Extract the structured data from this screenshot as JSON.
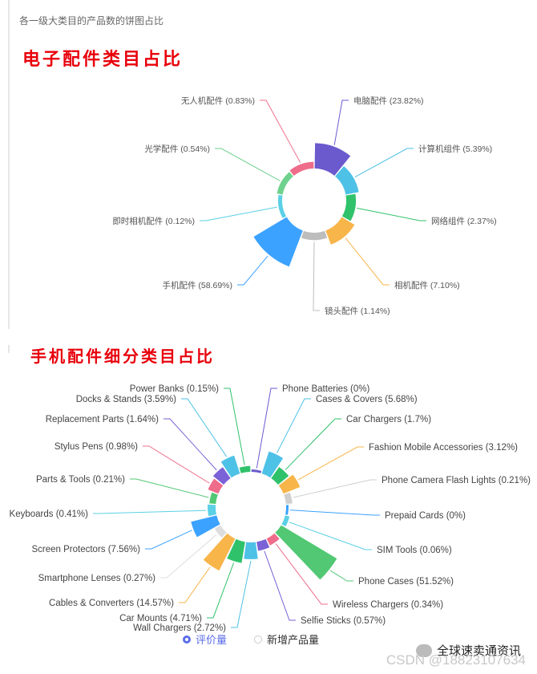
{
  "header": {
    "subtitle": "各一级大类目的产品数的饼图占比"
  },
  "sections": {
    "electronics_title": "电子配件类目占比",
    "phone_title": "手机配件细分类目占比"
  },
  "chart_data": [
    {
      "type": "pie",
      "variant": "rose",
      "slices": [
        {
          "label": "电脑配件 (23.82%)",
          "value": 23.82,
          "color": "#6a5acd"
        },
        {
          "label": "计算机组件 (5.39%)",
          "value": 5.39,
          "color": "#4ec1e6"
        },
        {
          "label": "网络组件 (2.37%)",
          "value": 2.37,
          "color": "#2fc26b"
        },
        {
          "label": "相机配件 (7.10%)",
          "value": 7.1,
          "color": "#f8b54a"
        },
        {
          "label": "镜头配件 (1.14%)",
          "value": 1.14,
          "color": "#bdbdbd"
        },
        {
          "label": "手机配件 (58.69%)",
          "value": 58.69,
          "color": "#3ba2ff"
        },
        {
          "label": "即时相机配件 (0.12%)",
          "value": 0.12,
          "color": "#5bd0e6"
        },
        {
          "label": "光学配件 (0.54%)",
          "value": 0.54,
          "color": "#6fd18e"
        },
        {
          "label": "无人机配件 (0.83%)",
          "value": 0.83,
          "color": "#ef6c8a"
        }
      ]
    },
    {
      "type": "pie",
      "variant": "rose",
      "slices": [
        {
          "label": "Phone Batteries (0%)",
          "value": 0,
          "color": "#6a5acd"
        },
        {
          "label": "Cases & Covers (5.68%)",
          "value": 5.68,
          "color": "#4ec1e6"
        },
        {
          "label": "Car Chargers (1.7%)",
          "value": 1.7,
          "color": "#2fc26b"
        },
        {
          "label": "Fashion Mobile Accessories (3.12%)",
          "value": 3.12,
          "color": "#f8b54a"
        },
        {
          "label": "Phone Camera Flash Lights (0.21%)",
          "value": 0.21,
          "color": "#cfcfcf"
        },
        {
          "label": "Prepaid Cards (0%)",
          "value": 0,
          "color": "#3ba2ff"
        },
        {
          "label": "SIM Tools (0.06%)",
          "value": 0.06,
          "color": "#5bd0e6"
        },
        {
          "label": "Phone Cases (51.52%)",
          "value": 51.52,
          "color": "#52c874"
        },
        {
          "label": "Wireless Chargers (0.34%)",
          "value": 0.34,
          "color": "#ef6c8a"
        },
        {
          "label": "Selfie Sticks (0.57%)",
          "value": 0.57,
          "color": "#7b62d6"
        },
        {
          "label": "Wall Chargers (2.72%)",
          "value": 2.72,
          "color": "#4ec1e6"
        },
        {
          "label": "Car Mounts (4.71%)",
          "value": 4.71,
          "color": "#2fc26b"
        },
        {
          "label": "Cables & Converters (14.57%)",
          "value": 14.57,
          "color": "#f8b54a"
        },
        {
          "label": "Smartphone Lenses (0.27%)",
          "value": 0.27,
          "color": "#dddddd"
        },
        {
          "label": "Screen Protectors (7.56%)",
          "value": 7.56,
          "color": "#3ba2ff"
        },
        {
          "label": "Keyboards (0.41%)",
          "value": 0.41,
          "color": "#5bd0e6"
        },
        {
          "label": "Parts & Tools (0.21%)",
          "value": 0.21,
          "color": "#52c874"
        },
        {
          "label": "Stylus Pens (0.98%)",
          "value": 0.98,
          "color": "#ef6c8a"
        },
        {
          "label": "Replacement Parts (1.64%)",
          "value": 1.64,
          "color": "#7b62d6"
        },
        {
          "label": "Docks & Stands (3.59%)",
          "value": 3.59,
          "color": "#4ec1e6"
        },
        {
          "label": "Power Banks (0.15%)",
          "value": 0.15,
          "color": "#2fc26b"
        }
      ]
    }
  ],
  "legend": {
    "series1": "评价量",
    "series2": "新增产品量",
    "selected": "评价量"
  },
  "watermark": {
    "account": "全球速卖通资讯",
    "csdn": "CSDN @18823107634"
  }
}
